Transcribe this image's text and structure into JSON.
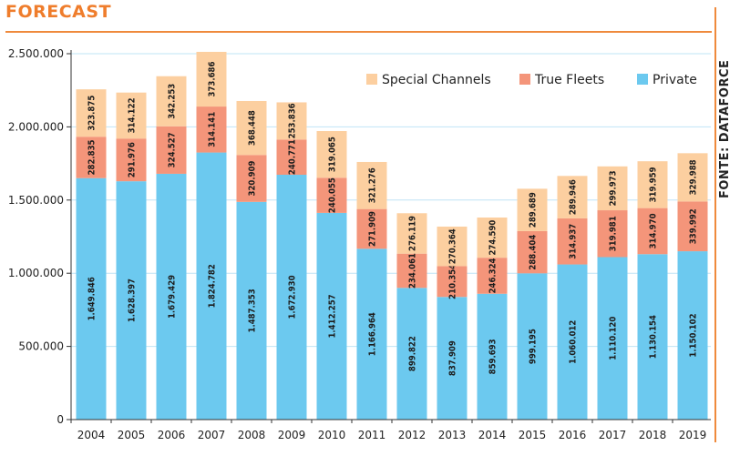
{
  "header": {
    "title": "FORECAST",
    "source": "FONTE: DATAFORCE"
  },
  "chart_data": {
    "type": "bar",
    "stacked": true,
    "categories": [
      "2004",
      "2005",
      "2006",
      "2007",
      "2008",
      "2009",
      "2010",
      "2011",
      "2012",
      "2013",
      "2014",
      "2015",
      "2016",
      "2017",
      "2018",
      "2019"
    ],
    "series": [
      {
        "name": "Private",
        "color": "#6cc9ef",
        "values": [
          1649846,
          1628397,
          1679429,
          1824782,
          1487353,
          1672930,
          1412257,
          1166964,
          899822,
          837909,
          859693,
          999195,
          1060012,
          1110120,
          1130154,
          1150102
        ],
        "labels": [
          "1.649.846",
          "1.628.397",
          "1.679.429",
          "1.824.782",
          "1.487.353",
          "1.672.930",
          "1.412.257",
          "1.166.964",
          "899.822",
          "837.909",
          "859.693",
          "999.195",
          "1.060.012",
          "1.110.120",
          "1.130.154",
          "1.150.102"
        ]
      },
      {
        "name": "True Fleets",
        "color": "#f4957a",
        "values": [
          282835,
          291976,
          324527,
          314141,
          320909,
          240771,
          240055,
          271909,
          234061,
          210354,
          246324,
          288404,
          314937,
          319981,
          314970,
          339992
        ],
        "labels": [
          "282.835",
          "291.976",
          "324.527",
          "314.141",
          "320.909",
          "240.771",
          "240.055",
          "271.909",
          "234.061",
          "210.354",
          "246.324",
          "288.404",
          "314.937",
          "319.981",
          "314.970",
          "339.992"
        ]
      },
      {
        "name": "Special Channels",
        "color": "#fccfa0",
        "values": [
          323875,
          314122,
          342253,
          373686,
          368448,
          253836,
          319065,
          321276,
          276119,
          270364,
          274590,
          289689,
          289946,
          299973,
          319959,
          329988
        ],
        "labels": [
          "323.875",
          "314.122",
          "342.253",
          "373.686",
          "368.448",
          "253.836",
          "319.065",
          "321.276",
          "276.119",
          "270.364",
          "274.590",
          "289.689",
          "289.946",
          "299.973",
          "319.959",
          "329.988"
        ]
      }
    ],
    "ylim": [
      0,
      2500000
    ],
    "yticks": [
      0,
      500000,
      1000000,
      1500000,
      2000000,
      2500000
    ],
    "ytick_labels": [
      "0",
      "500.000",
      "1.000.000",
      "1.500.000",
      "2.000.000",
      "2.500.000"
    ],
    "legend_order": [
      "Special Channels",
      "True Fleets",
      "Private"
    ],
    "legend_position": "top-right",
    "grid": true,
    "grid_color": "#bfe4f6"
  }
}
